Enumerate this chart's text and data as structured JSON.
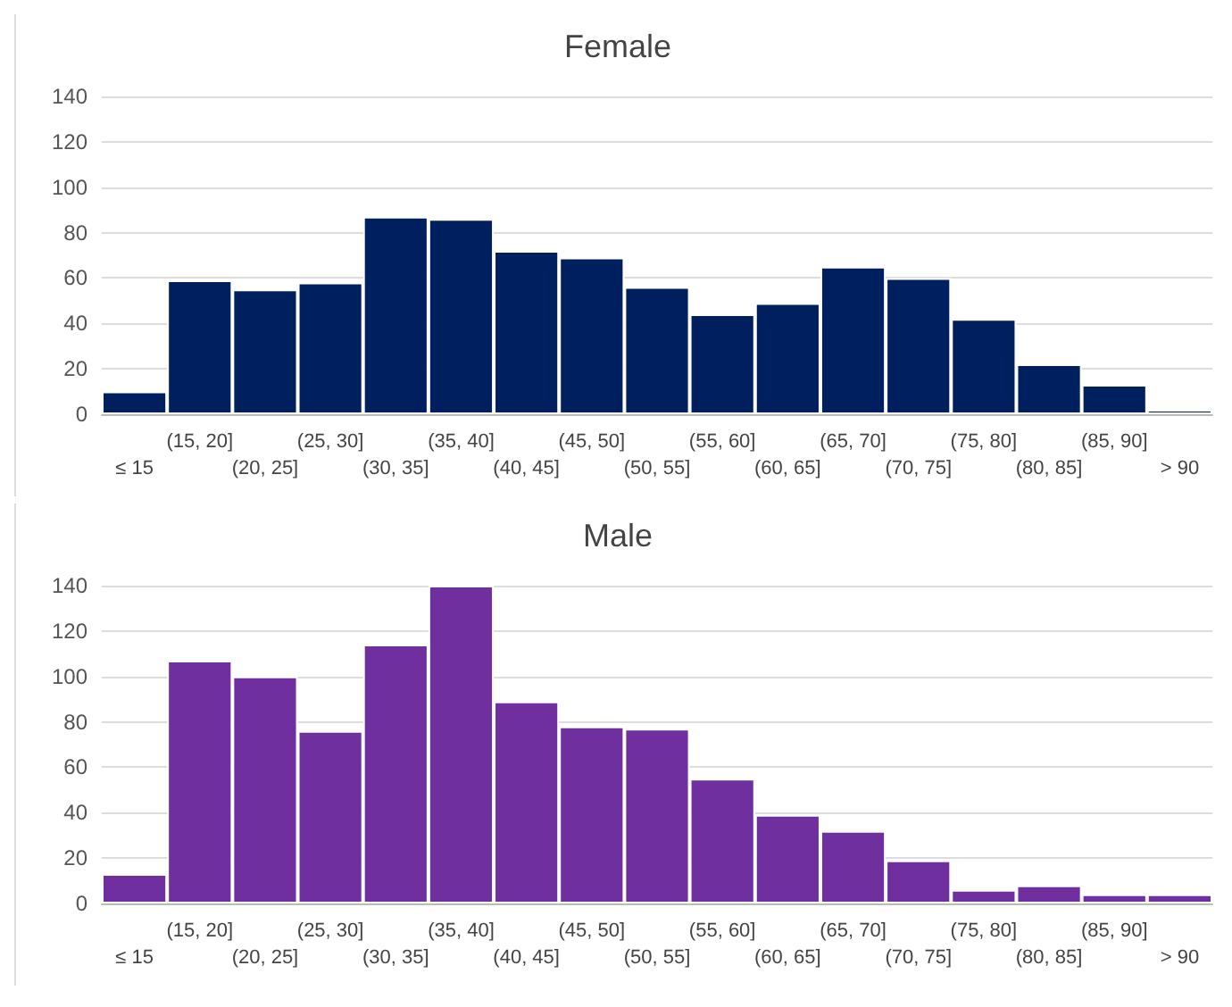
{
  "chart_data": [
    {
      "type": "bar",
      "title": "Female",
      "categories": [
        "≤ 15",
        "(15, 20]",
        "(20, 25]",
        "(25, 30]",
        "(30, 35]",
        "(35, 40]",
        "(40, 45]",
        "(45, 50]",
        "(50, 55]",
        "(55, 60]",
        "(60, 65]",
        "(65, 70]",
        "(70, 75]",
        "(75, 80]",
        "(80, 85]",
        "(85, 90]",
        "> 90"
      ],
      "values": [
        10,
        59,
        55,
        58,
        87,
        86,
        72,
        69,
        56,
        44,
        49,
        65,
        60,
        42,
        22,
        13,
        2
      ],
      "color": "#001f5f",
      "ylim": [
        0,
        140
      ],
      "yticks": [
        0,
        20,
        40,
        60,
        80,
        100,
        120,
        140
      ],
      "grid": "y"
    },
    {
      "type": "bar",
      "title": "Male",
      "categories": [
        "≤ 15",
        "(15, 20]",
        "(20, 25]",
        "(25, 30]",
        "(30, 35]",
        "(35, 40]",
        "(40, 45]",
        "(45, 50]",
        "(50, 55]",
        "(55, 60]",
        "(60, 65]",
        "(65, 70]",
        "(70, 75]",
        "(75, 80]",
        "(80, 85]",
        "(85, 90]",
        "> 90"
      ],
      "values": [
        13,
        107,
        100,
        76,
        114,
        140,
        89,
        78,
        77,
        55,
        39,
        32,
        19,
        6,
        8,
        4,
        4
      ],
      "color": "#6f2f9f",
      "ylim": [
        0,
        140
      ],
      "yticks": [
        0,
        20,
        40,
        60,
        80,
        100,
        120,
        140
      ],
      "grid": "y"
    }
  ]
}
